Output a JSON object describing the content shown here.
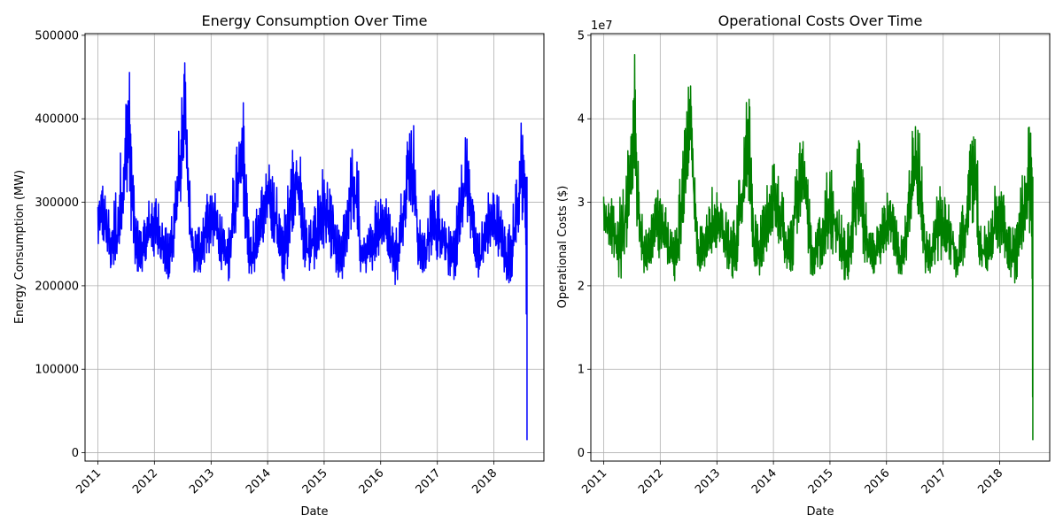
{
  "chart_data": [
    {
      "type": "line",
      "title": "Energy Consumption Over Time",
      "xlabel": "Date",
      "ylabel": "Energy Consumption (MW)",
      "x_tick_labels": [
        "2011",
        "2012",
        "2013",
        "2014",
        "2015",
        "2016",
        "2017",
        "2018"
      ],
      "y_tick_labels": [
        "0",
        "100000",
        "200000",
        "300000",
        "400000",
        "500000"
      ],
      "y_ticks": [
        0,
        100000,
        200000,
        300000,
        400000,
        500000
      ],
      "y_multiplier": "",
      "xlim": [
        "2010-10-10",
        "2018-11-20"
      ],
      "ylim": [
        -10000,
        502000
      ],
      "grid": true,
      "legend": "none",
      "color": "#0000ff",
      "series": [
        {
          "x": [
            "2011-01-01",
            "2011-02-01",
            "2011-03-01",
            "2011-04-01",
            "2011-05-01",
            "2011-06-01",
            "2011-07-01",
            "2011-07-20",
            "2011-08-01",
            "2011-09-01",
            "2011-10-01",
            "2011-11-01",
            "2011-12-01",
            "2012-01-01",
            "2012-02-01",
            "2012-03-01",
            "2012-04-01",
            "2012-05-01",
            "2012-06-01",
            "2012-07-01",
            "2012-07-15",
            "2012-08-01",
            "2012-09-01",
            "2012-10-01",
            "2012-11-01",
            "2012-12-01",
            "2013-01-01",
            "2013-02-01",
            "2013-03-01",
            "2013-04-01",
            "2013-05-01",
            "2013-06-01",
            "2013-07-01",
            "2013-07-20",
            "2013-08-01",
            "2013-09-01",
            "2013-10-01",
            "2013-11-01",
            "2013-12-01",
            "2014-01-01",
            "2014-02-01",
            "2014-03-01",
            "2014-04-01",
            "2014-05-01",
            "2014-06-01",
            "2014-07-01",
            "2014-08-01",
            "2014-09-01",
            "2014-10-01",
            "2014-11-01",
            "2014-12-01",
            "2015-01-01",
            "2015-02-01",
            "2015-03-01",
            "2015-04-01",
            "2015-05-01",
            "2015-06-01",
            "2015-07-01",
            "2015-08-01",
            "2015-09-01",
            "2015-10-01",
            "2015-11-01",
            "2015-12-01",
            "2016-01-01",
            "2016-02-01",
            "2016-03-01",
            "2016-04-01",
            "2016-05-01",
            "2016-06-01",
            "2016-07-01",
            "2016-08-01",
            "2016-09-01",
            "2016-10-01",
            "2016-11-01",
            "2016-12-01",
            "2017-01-01",
            "2017-02-01",
            "2017-03-01",
            "2017-04-01",
            "2017-05-01",
            "2017-06-01",
            "2017-07-01",
            "2017-08-01",
            "2017-09-01",
            "2017-10-01",
            "2017-11-01",
            "2017-12-01",
            "2018-01-01",
            "2018-02-01",
            "2018-03-01",
            "2018-04-01",
            "2018-05-01",
            "2018-06-01",
            "2018-07-01",
            "2018-07-25",
            "2018-08-03"
          ],
          "y_min": [
            240000,
            250000,
            235000,
            210000,
            200000,
            250000,
            300000,
            330000,
            270000,
            215000,
            215000,
            220000,
            240000,
            230000,
            235000,
            220000,
            200000,
            225000,
            270000,
            320000,
            370000,
            290000,
            215000,
            210000,
            215000,
            235000,
            235000,
            250000,
            220000,
            205000,
            205000,
            250000,
            300000,
            330000,
            270000,
            215000,
            210000,
            230000,
            245000,
            270000,
            250000,
            240000,
            205000,
            205000,
            260000,
            280000,
            260000,
            210000,
            215000,
            220000,
            235000,
            240000,
            235000,
            230000,
            195000,
            205000,
            240000,
            270000,
            240000,
            205000,
            210000,
            215000,
            230000,
            240000,
            245000,
            230000,
            200000,
            210000,
            260000,
            300000,
            280000,
            215000,
            210000,
            220000,
            230000,
            230000,
            235000,
            220000,
            200000,
            210000,
            250000,
            280000,
            260000,
            205000,
            210000,
            225000,
            240000,
            240000,
            235000,
            215000,
            200000,
            210000,
            250000,
            260000,
            260000,
            15000
          ],
          "y_max": [
            310000,
            330000,
            300000,
            290000,
            330000,
            370000,
            430000,
            480000,
            420000,
            290000,
            270000,
            280000,
            310000,
            320000,
            300000,
            280000,
            260000,
            320000,
            380000,
            440000,
            470000,
            380000,
            280000,
            270000,
            290000,
            320000,
            320000,
            310000,
            290000,
            270000,
            290000,
            350000,
            400000,
            440000,
            420000,
            290000,
            280000,
            300000,
            330000,
            350000,
            340000,
            320000,
            280000,
            300000,
            370000,
            380000,
            360000,
            290000,
            280000,
            300000,
            330000,
            350000,
            320000,
            300000,
            270000,
            280000,
            330000,
            380000,
            370000,
            280000,
            270000,
            280000,
            310000,
            320000,
            310000,
            290000,
            270000,
            290000,
            370000,
            400000,
            400000,
            290000,
            270000,
            290000,
            330000,
            320000,
            300000,
            290000,
            260000,
            290000,
            340000,
            380000,
            380000,
            290000,
            270000,
            290000,
            320000,
            320000,
            310000,
            280000,
            270000,
            290000,
            350000,
            410000,
            380000,
            330000
          ]
        }
      ]
    },
    {
      "type": "line",
      "title": "Operational Costs Over Time",
      "xlabel": "Date",
      "ylabel": "Operational Costs ($)",
      "x_tick_labels": [
        "2011",
        "2012",
        "2013",
        "2014",
        "2015",
        "2016",
        "2017",
        "2018"
      ],
      "y_tick_labels": [
        "0",
        "1",
        "2",
        "3",
        "4",
        "5"
      ],
      "y_ticks": [
        0,
        10000000,
        20000000,
        30000000,
        40000000,
        50000000
      ],
      "y_multiplier": "1e7",
      "xlim": [
        "2010-10-10",
        "2018-11-20"
      ],
      "ylim": [
        -1000000,
        50200000
      ],
      "grid": true,
      "legend": "none",
      "color": "#008000",
      "series": [
        {
          "x": [
            "2011-01-01",
            "2011-02-01",
            "2011-03-01",
            "2011-04-01",
            "2011-05-01",
            "2011-06-01",
            "2011-07-01",
            "2011-07-20",
            "2011-08-01",
            "2011-09-01",
            "2011-10-01",
            "2011-11-01",
            "2011-12-01",
            "2012-01-01",
            "2012-02-01",
            "2012-03-01",
            "2012-04-01",
            "2012-05-01",
            "2012-06-01",
            "2012-07-01",
            "2012-07-15",
            "2012-08-01",
            "2012-09-01",
            "2012-10-01",
            "2012-11-01",
            "2012-12-01",
            "2013-01-01",
            "2013-02-01",
            "2013-03-01",
            "2013-04-01",
            "2013-05-01",
            "2013-06-01",
            "2013-07-01",
            "2013-07-20",
            "2013-08-01",
            "2013-09-01",
            "2013-10-01",
            "2013-11-01",
            "2013-12-01",
            "2014-01-01",
            "2014-02-01",
            "2014-03-01",
            "2014-04-01",
            "2014-05-01",
            "2014-06-01",
            "2014-07-01",
            "2014-08-01",
            "2014-09-01",
            "2014-10-01",
            "2014-11-01",
            "2014-12-01",
            "2015-01-01",
            "2015-02-01",
            "2015-03-01",
            "2015-04-01",
            "2015-05-01",
            "2015-06-01",
            "2015-07-01",
            "2015-08-01",
            "2015-09-01",
            "2015-10-01",
            "2015-11-01",
            "2015-12-01",
            "2016-01-01",
            "2016-02-01",
            "2016-03-01",
            "2016-04-01",
            "2016-05-01",
            "2016-06-01",
            "2016-07-01",
            "2016-08-01",
            "2016-09-01",
            "2016-10-01",
            "2016-11-01",
            "2016-12-01",
            "2017-01-01",
            "2017-02-01",
            "2017-03-01",
            "2017-04-01",
            "2017-05-01",
            "2017-06-01",
            "2017-07-01",
            "2017-08-01",
            "2017-09-01",
            "2017-10-01",
            "2017-11-01",
            "2017-12-01",
            "2018-01-01",
            "2018-02-01",
            "2018-03-01",
            "2018-04-01",
            "2018-05-01",
            "2018-06-01",
            "2018-07-01",
            "2018-07-25",
            "2018-08-03"
          ],
          "y_min": [
            24000000,
            25000000,
            23500000,
            21000000,
            20000000,
            25000000,
            30000000,
            33000000,
            27000000,
            21500000,
            21500000,
            22000000,
            24000000,
            23000000,
            23500000,
            22000000,
            20000000,
            22500000,
            27000000,
            32000000,
            37000000,
            29000000,
            21500000,
            21000000,
            21500000,
            23500000,
            23500000,
            25000000,
            22000000,
            20500000,
            20500000,
            25000000,
            30000000,
            33000000,
            27000000,
            21500000,
            21000000,
            23000000,
            24500000,
            27000000,
            25000000,
            24000000,
            20500000,
            20500000,
            26000000,
            28000000,
            26000000,
            21000000,
            21500000,
            22000000,
            23500000,
            24000000,
            23500000,
            23000000,
            19500000,
            20500000,
            24000000,
            27000000,
            24000000,
            20500000,
            21000000,
            21500000,
            23000000,
            24000000,
            24500000,
            23000000,
            20000000,
            21000000,
            26000000,
            30000000,
            28000000,
            21500000,
            21000000,
            22000000,
            23000000,
            23000000,
            23500000,
            22000000,
            20000000,
            21000000,
            25000000,
            28000000,
            26000000,
            20500000,
            21000000,
            22500000,
            24000000,
            24000000,
            23500000,
            21500000,
            20000000,
            21000000,
            25000000,
            26000000,
            26000000,
            1500000
          ],
          "y_max": [
            31000000,
            33000000,
            30000000,
            29000000,
            33000000,
            37000000,
            43000000,
            48000000,
            42000000,
            29000000,
            27000000,
            28000000,
            31000000,
            32000000,
            30000000,
            28000000,
            26000000,
            32000000,
            38000000,
            44000000,
            47000000,
            38000000,
            28000000,
            27000000,
            29000000,
            32000000,
            32000000,
            31000000,
            29000000,
            27000000,
            29000000,
            35000000,
            40000000,
            44000000,
            42000000,
            29000000,
            28000000,
            30000000,
            33000000,
            35000000,
            34000000,
            32000000,
            28000000,
            30000000,
            37000000,
            38000000,
            36000000,
            29000000,
            28000000,
            30000000,
            33000000,
            35000000,
            32000000,
            30000000,
            27000000,
            28000000,
            33000000,
            38000000,
            37000000,
            28000000,
            27000000,
            28000000,
            31000000,
            32000000,
            31000000,
            29000000,
            27000000,
            29000000,
            37000000,
            40000000,
            40000000,
            29000000,
            27000000,
            29000000,
            33000000,
            32000000,
            30000000,
            29000000,
            26000000,
            29000000,
            34000000,
            38000000,
            38000000,
            29000000,
            27000000,
            29000000,
            32000000,
            32000000,
            31000000,
            28000000,
            27000000,
            29000000,
            35000000,
            41000000,
            38000000,
            33000000
          ]
        }
      ]
    }
  ]
}
